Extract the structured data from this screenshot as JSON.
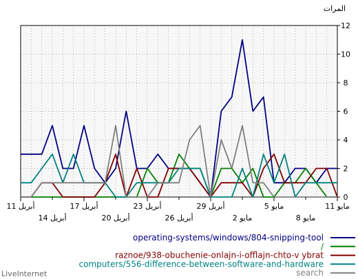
{
  "chart_data": {
    "type": "line",
    "ylabel": "المرات",
    "ylim": [
      0,
      12
    ],
    "yticks": [
      "0",
      "2",
      "4",
      "6",
      "8",
      "10",
      "12"
    ],
    "x_count": 31,
    "x_ticks_upper": [
      {
        "i": 0,
        "label": "11 مايو"
      },
      {
        "i": 6,
        "label": "5 مايو"
      },
      {
        "i": 12,
        "label": "29 أبريل"
      },
      {
        "i": 18,
        "label": "23 أبريل"
      },
      {
        "i": 24,
        "label": "17 أبريل"
      },
      {
        "i": 30,
        "label": "11 أبريل"
      }
    ],
    "x_ticks_lower": [
      {
        "i": 3,
        "label": "8 مايو"
      },
      {
        "i": 9,
        "label": "2 مايو"
      },
      {
        "i": 15,
        "label": "26 أبريل"
      },
      {
        "i": 21,
        "label": "20 أبريل"
      },
      {
        "i": 27,
        "label": "14 أبريل"
      }
    ],
    "grid": true,
    "series": [
      {
        "name": "operating-systems/windows/804-snipping-tool",
        "color": "#000080",
        "values": [
          2,
          2,
          1,
          2,
          2,
          1,
          1,
          7,
          6,
          11,
          7,
          6,
          0,
          1,
          2,
          2,
          2,
          3,
          2,
          2,
          6,
          2,
          1,
          2,
          5,
          2,
          2,
          5,
          3,
          3,
          3
        ]
      },
      {
        "name": "/",
        "color": "#008000",
        "values": [
          0,
          0,
          1,
          2,
          1,
          1,
          0,
          0,
          2,
          1,
          2,
          2,
          0,
          2,
          2,
          3,
          1,
          1,
          2,
          0,
          0,
          0,
          0,
          0,
          0,
          0,
          0,
          0,
          0,
          0,
          0
        ]
      },
      {
        "name": "raznoe/938-obuchenie-onlajn-i-offlajn-chto-v ybrat",
        "color": "#800000",
        "values": [
          0,
          2,
          2,
          1,
          1,
          1,
          3,
          2,
          0,
          1,
          1,
          1,
          0,
          1,
          2,
          2,
          2,
          0,
          0,
          2,
          0,
          3,
          1,
          0,
          0,
          0,
          0,
          1,
          1,
          0,
          0
        ]
      },
      {
        "name": "computers/556-difference-between-software-and-hardware",
        "color": "#008080",
        "values": [
          1,
          1,
          1,
          1,
          0,
          3,
          1,
          3,
          0,
          2,
          0,
          0,
          0,
          2,
          2,
          2,
          1,
          1,
          1,
          1,
          0,
          0,
          1,
          1,
          1,
          3,
          1,
          3,
          2,
          1,
          1
        ]
      },
      {
        "name": "search",
        "color": "#808080",
        "values": [
          0,
          0,
          0,
          0,
          0,
          0,
          0,
          1,
          1,
          5,
          2,
          4,
          0,
          5,
          4,
          1,
          1,
          1,
          0,
          0,
          0,
          5,
          1,
          1,
          1,
          1,
          1,
          1,
          1,
          0,
          0
        ]
      }
    ]
  },
  "brand": "LiveInternet"
}
